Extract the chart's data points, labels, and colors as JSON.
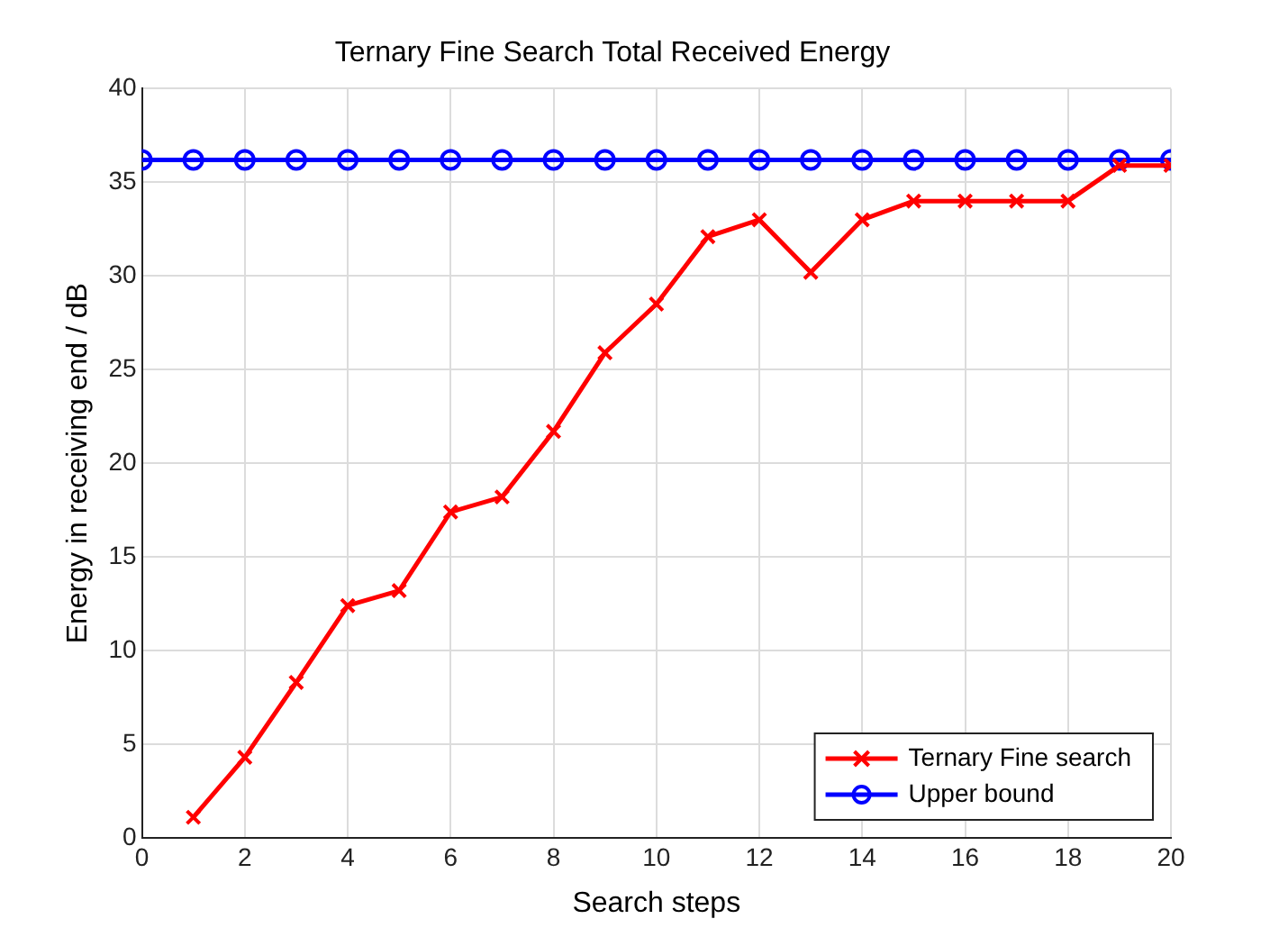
{
  "chart_data": {
    "type": "line",
    "title": "Ternary Fine Search Total Received Energy",
    "xlabel": "Search steps",
    "ylabel": "Energy in receiving end / dB",
    "xlim": [
      0,
      20
    ],
    "xticks": [
      0,
      2,
      4,
      6,
      8,
      10,
      12,
      14,
      16,
      18,
      20
    ],
    "ylim": [
      0,
      40
    ],
    "yticks": [
      0,
      5,
      10,
      15,
      20,
      25,
      30,
      35,
      40
    ],
    "grid": true,
    "legend": "bottom right",
    "series": [
      {
        "name": "Ternary Fine search",
        "color": "#ff0000",
        "marker": "cross",
        "x": [
          1,
          2,
          3,
          4,
          5,
          6,
          7,
          8,
          9,
          10,
          11,
          12,
          13,
          14,
          15,
          16,
          17,
          18,
          19,
          20
        ],
        "values": [
          1.1,
          4.3,
          8.3,
          12.4,
          13.2,
          17.4,
          18.2,
          21.7,
          25.9,
          28.5,
          32.1,
          33.0,
          30.2,
          33.0,
          34.0,
          34.0,
          34.0,
          34.0,
          35.9,
          35.9
        ]
      },
      {
        "name": "Upper bound",
        "color": "#0000ff",
        "marker": "circle",
        "x": [
          0,
          1,
          2,
          3,
          4,
          5,
          6,
          7,
          8,
          9,
          10,
          11,
          12,
          13,
          14,
          15,
          16,
          17,
          18,
          19,
          20
        ],
        "values": [
          36.2,
          36.2,
          36.2,
          36.2,
          36.2,
          36.2,
          36.2,
          36.2,
          36.2,
          36.2,
          36.2,
          36.2,
          36.2,
          36.2,
          36.2,
          36.2,
          36.2,
          36.2,
          36.2,
          36.2,
          36.2
        ]
      }
    ]
  }
}
